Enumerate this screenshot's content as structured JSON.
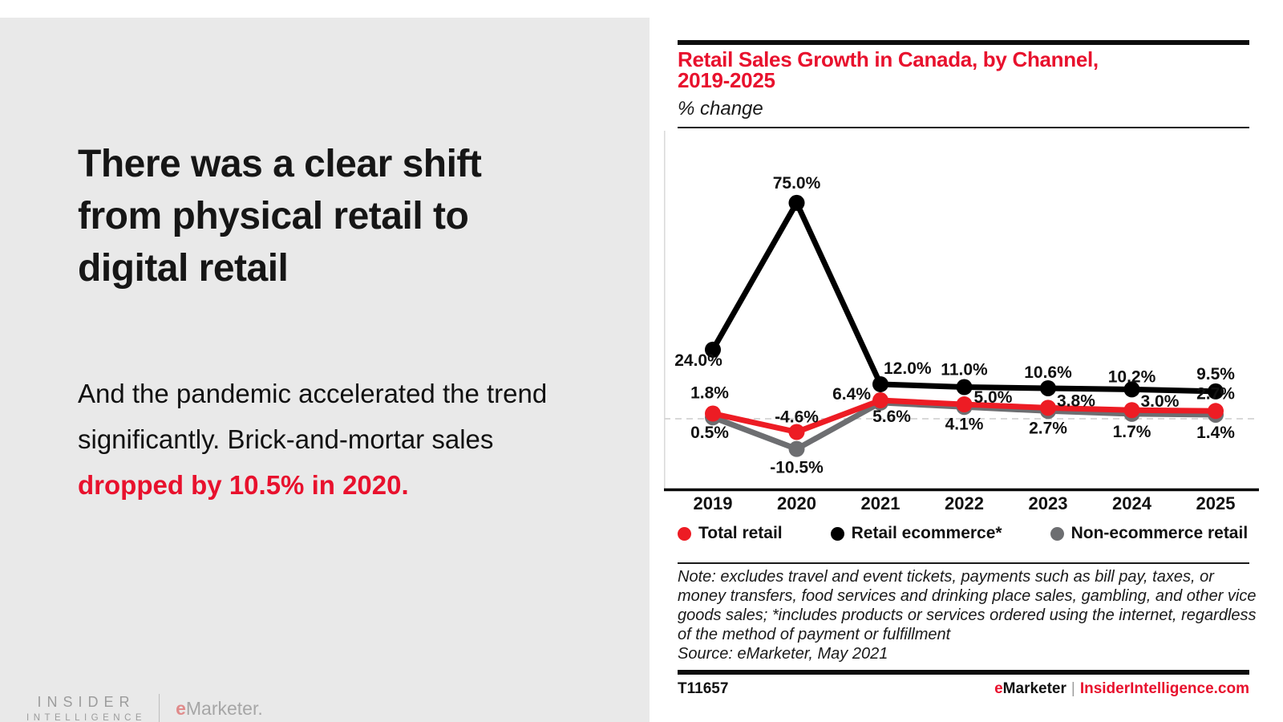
{
  "left_panel": {
    "headline_lines": [
      "There was a clear shift",
      "from physical retail to",
      "digital retail"
    ],
    "body_lines": [
      "And the pandemic accelerated the trend",
      "significantly. Brick-and-mortar sales"
    ],
    "body_highlight": "dropped by 10.5% in 2020.",
    "logo": {
      "line1": "INSIDER",
      "line2": "INTELLIGENCE",
      "brand_e": "e",
      "brand_rest": "Marketer."
    }
  },
  "chart": {
    "title_lines": [
      "Retail Sales Growth in Canada, by Channel,",
      "2019-2025"
    ],
    "subtitle": "% change",
    "note_lines": [
      "Note: excludes travel and event tickets, payments such as bill pay, taxes, or",
      "money transfers, food services and drinking place sales, gambling, and other vice",
      "goods sales; *includes products or services ordered using the internet, regardless",
      "of the method of payment or fulfillment"
    ],
    "source": "Source: eMarketer, May 2021",
    "footer": {
      "id": "T11657",
      "brand_e": "e",
      "brand_rest": "Marketer",
      "separator": "|",
      "site": "InsiderIntelligence.com"
    }
  },
  "chart_data": {
    "type": "line",
    "title": "Retail Sales Growth in Canada, by Channel, 2019-2025",
    "subtitle": "% change",
    "x": [
      2019,
      2020,
      2021,
      2022,
      2023,
      2024,
      2025
    ],
    "series": [
      {
        "name": "Total retail",
        "color": "#ed1c24",
        "values": [
          1.8,
          -4.6,
          6.4,
          5.0,
          3.8,
          3.0,
          2.7
        ],
        "labels": [
          "1.8%",
          "-4.6%",
          "6.4%",
          "5.0%",
          "3.8%",
          "3.0%",
          "2.7%"
        ]
      },
      {
        "name": "Retail ecommerce*",
        "color": "#000000",
        "values": [
          24.0,
          75.0,
          12.0,
          11.0,
          10.6,
          10.2,
          9.5
        ],
        "labels": [
          "24.0%",
          "75.0%",
          "12.0%",
          "11.0%",
          "10.6%",
          "10.2%",
          "9.5%"
        ]
      },
      {
        "name": "Non-ecommerce retail",
        "color": "#6d6e71",
        "values": [
          0.5,
          -10.5,
          5.6,
          4.1,
          2.7,
          1.7,
          1.4
        ],
        "labels": [
          "0.5%",
          "-10.5%",
          "5.6%",
          "4.1%",
          "2.7%",
          "1.7%",
          "1.4%"
        ]
      }
    ],
    "ylim": [
      -20,
      85
    ],
    "zero_line": true,
    "grid": false,
    "legend_position": "bottom",
    "colors": {
      "accent_red": "#e8112d",
      "zero_line_gray": "#cccccc",
      "axis_black": "#000000"
    }
  }
}
